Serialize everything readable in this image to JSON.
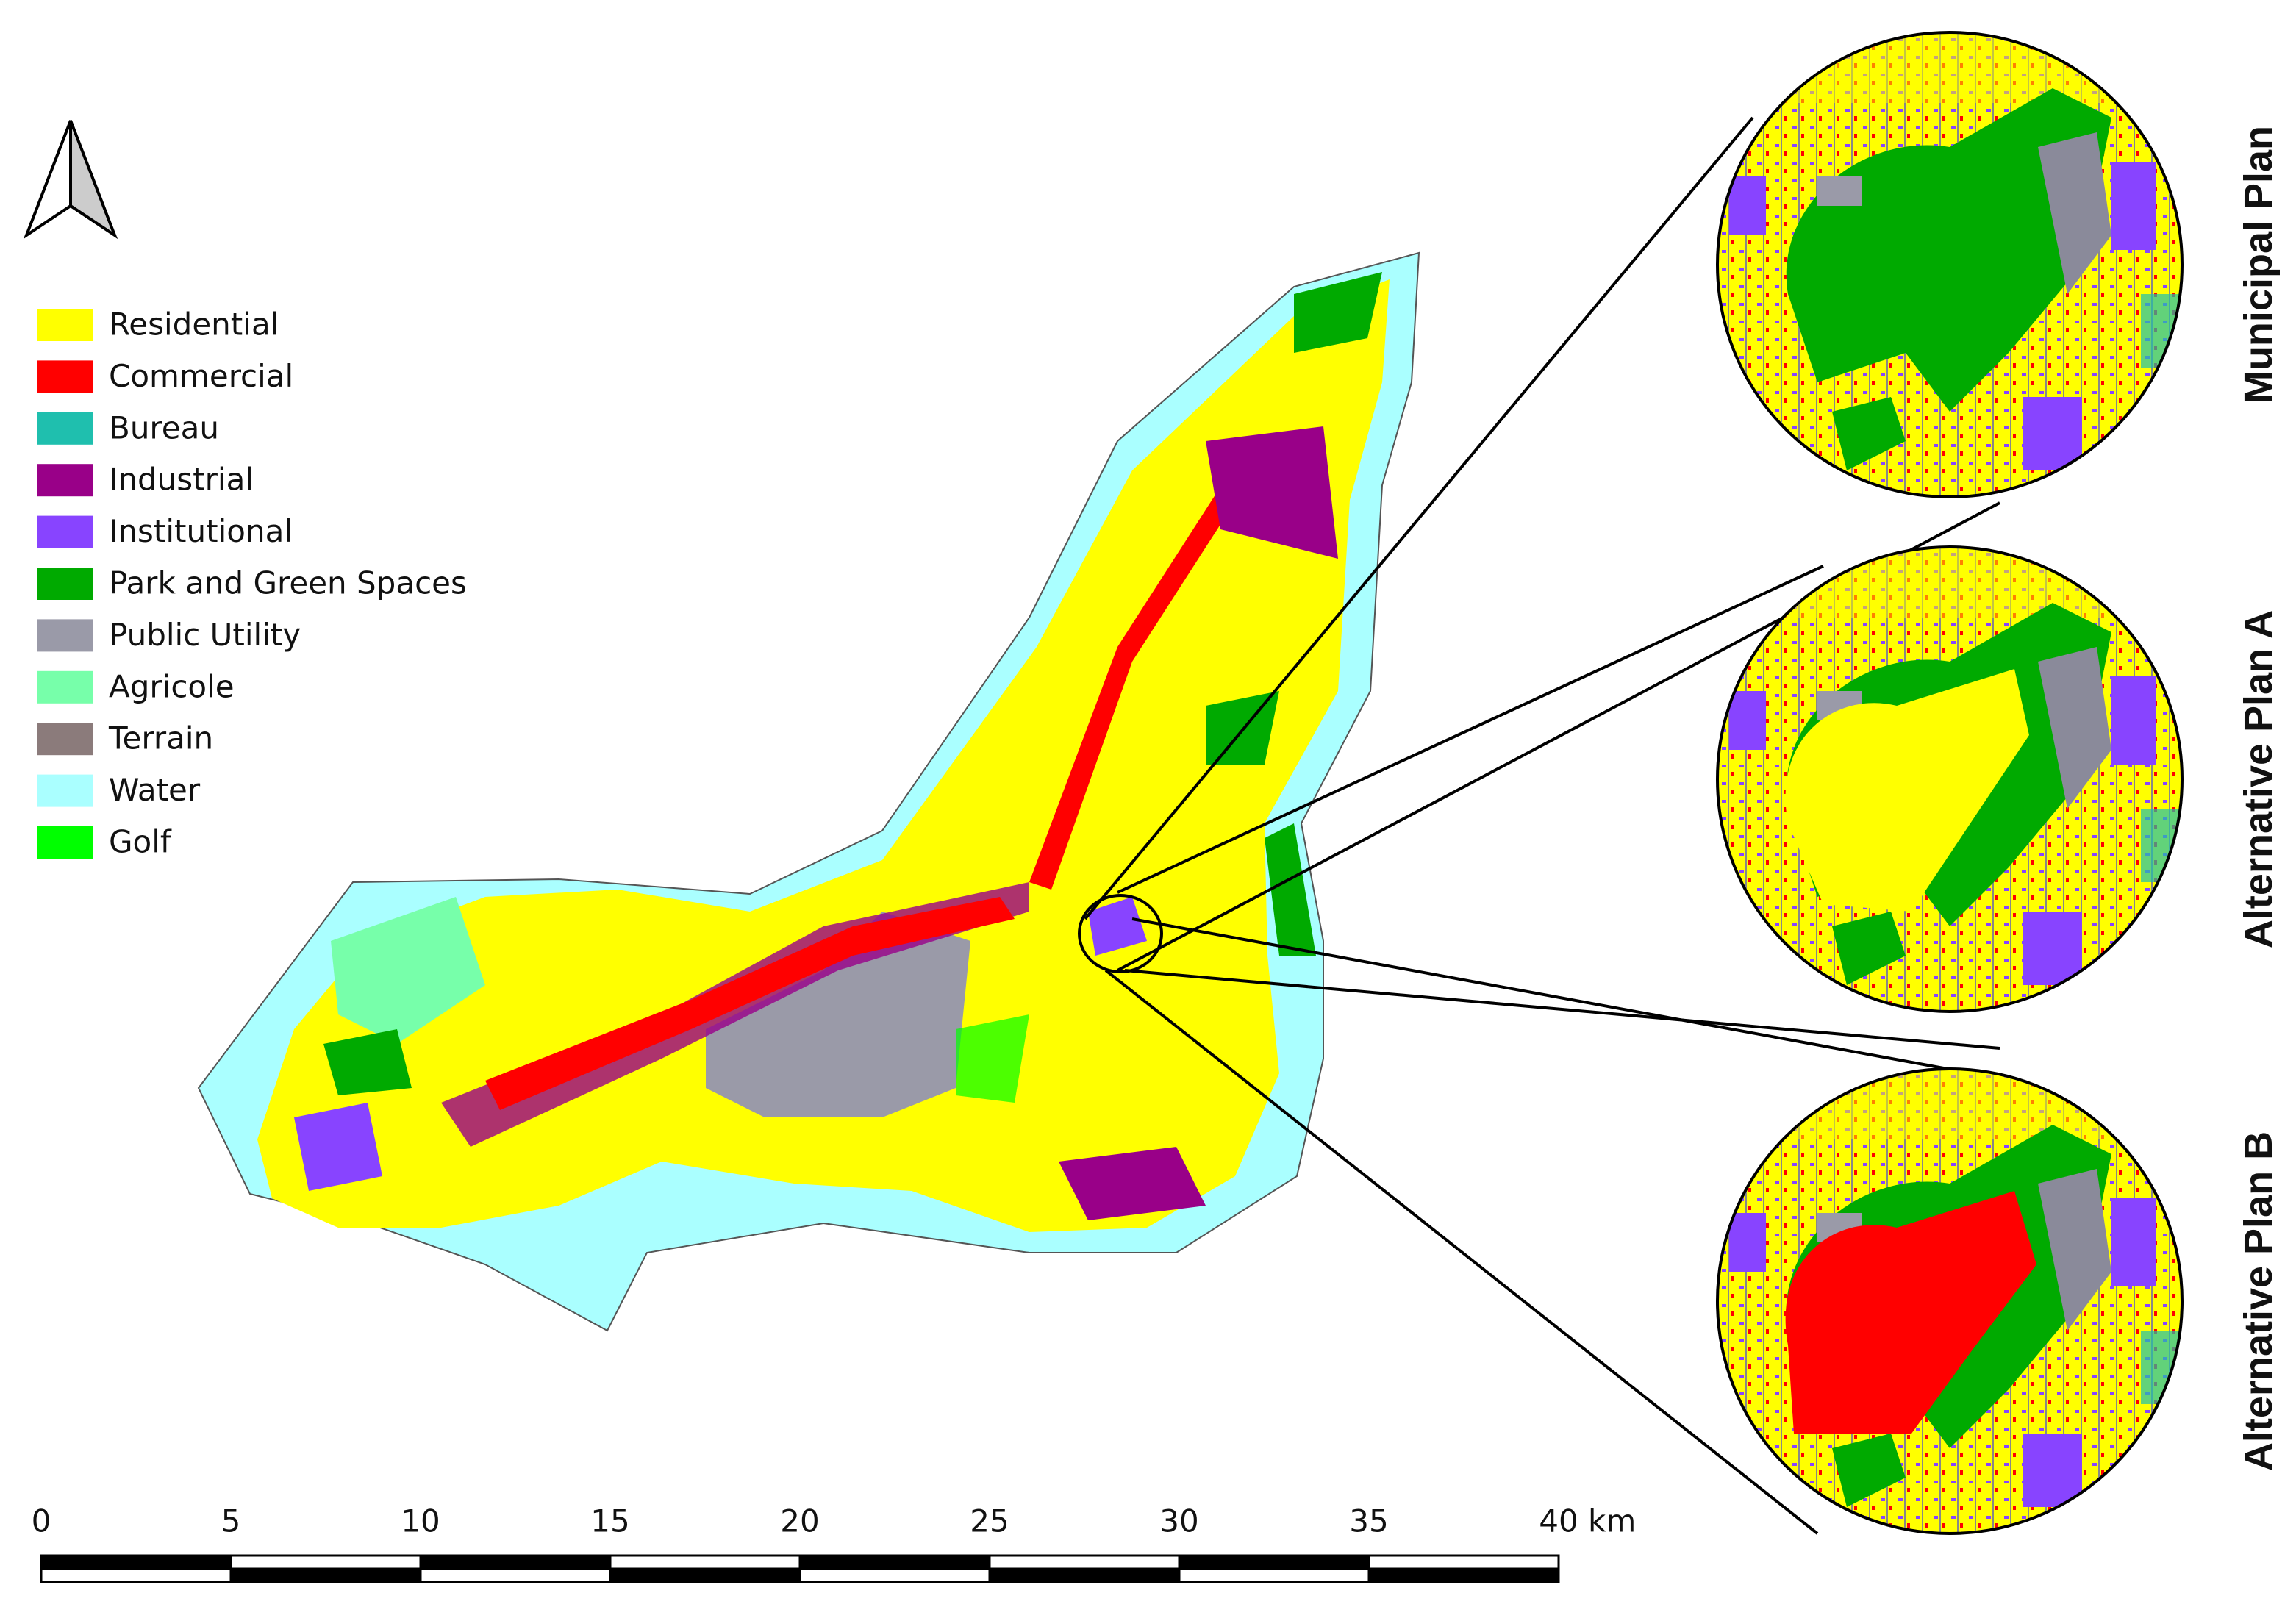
{
  "legend": {
    "items": [
      {
        "label": "Residential",
        "color": "#ffff00"
      },
      {
        "label": "Commercial",
        "color": "#ff0000"
      },
      {
        "label": "Bureau",
        "color": "#1fbfae"
      },
      {
        "label": "Industrial",
        "color": "#990088"
      },
      {
        "label": "Institutional",
        "color": "#8844ff"
      },
      {
        "label": "Park and Green Spaces",
        "color": "#00aa00"
      },
      {
        "label": "Public Utility",
        "color": "#9a9aa8"
      },
      {
        "label": "Agricole",
        "color": "#77ffaa"
      },
      {
        "label": "Terrain",
        "color": "#8b7b7b"
      },
      {
        "label": "Water",
        "color": "#aaffff"
      },
      {
        "label": "Golf",
        "color": "#00ff00"
      }
    ]
  },
  "scale_bar": {
    "ticks": [
      "0",
      "5",
      "10",
      "15",
      "20",
      "25",
      "30",
      "35",
      "40"
    ],
    "unit": "km"
  },
  "insets": [
    "Municipal Plan",
    "Alternative Plan A",
    "Alternative Plan B"
  ]
}
